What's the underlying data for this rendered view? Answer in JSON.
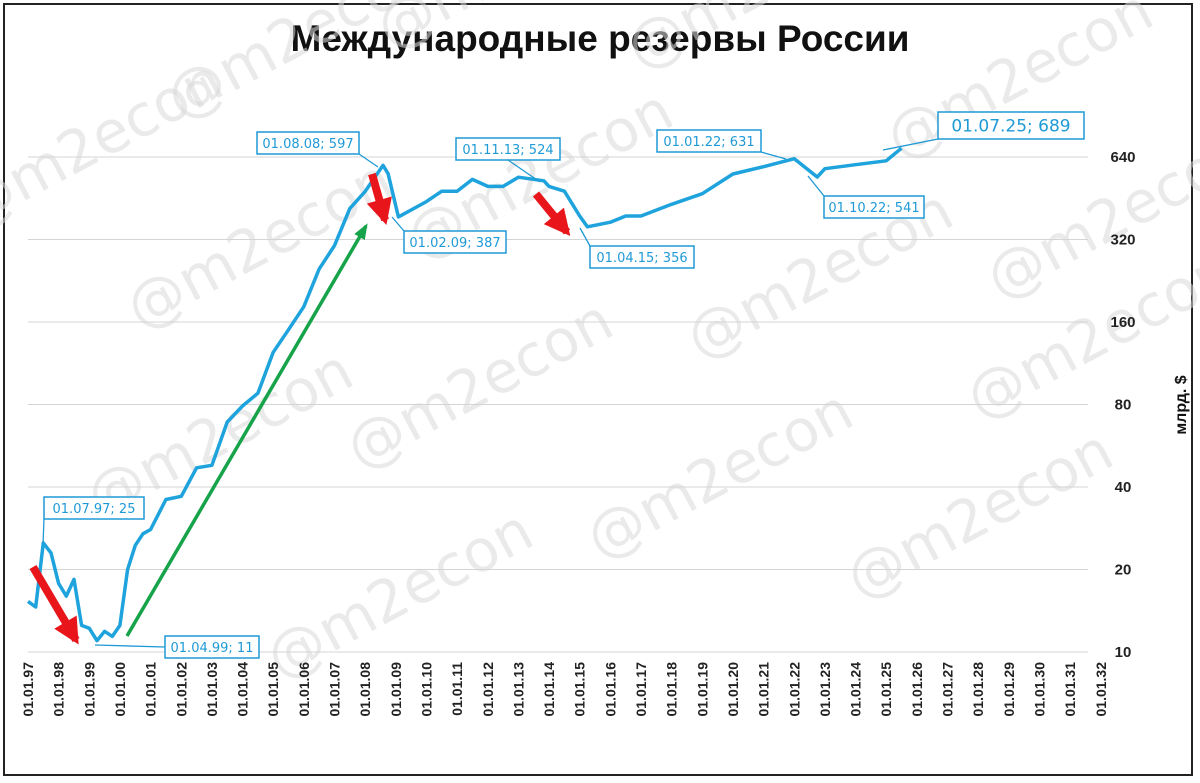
{
  "title": "Международные резервы России",
  "watermark": "@m2econ",
  "colors": {
    "line": "#1ea3dd",
    "annotation": "#1f9ad6",
    "down_arrow": "#e8161b",
    "up_arrow": "#16a34a",
    "grid": "#d4d4d4"
  },
  "chart_data": {
    "type": "line",
    "title": "Международные резервы России",
    "ylabel": "млрд. $",
    "y_scale": "log2",
    "ylim": [
      10,
      1280
    ],
    "y_ticks": [
      10,
      20,
      40,
      80,
      160,
      320,
      640
    ],
    "y_tick_labels": [
      "10",
      "20",
      "40",
      "80",
      "160",
      "320",
      "640"
    ],
    "x_ticks": [
      "01.01.97",
      "01.01.98",
      "01.01.99",
      "01.01.00",
      "01.01.01",
      "01.01.02",
      "01.01.03",
      "01.01.04",
      "01.01.05",
      "01.01.06",
      "01.01.07",
      "01.01.08",
      "01.01.09",
      "01.01.10",
      "01.01.11",
      "01.01.12",
      "01.01.13",
      "01.01.14",
      "01.01.15",
      "01.01.16",
      "01.01.17",
      "01.01.18",
      "01.01.19",
      "01.01.20",
      "01.01.21",
      "01.01.22",
      "01.01.23",
      "01.01.24",
      "01.01.25",
      "01.01.26",
      "01.01.27",
      "01.01.28",
      "01.01.29",
      "01.01.30",
      "01.01.31",
      "01.01.32"
    ],
    "grid": "horizontal",
    "series": [
      {
        "x": [
          "01.01.97",
          "01.04.97",
          "01.07.97",
          "01.10.97",
          "01.01.98",
          "01.04.98",
          "01.07.98",
          "01.10.98",
          "01.01.99",
          "01.04.99",
          "01.07.99",
          "01.10.99",
          "01.01.00",
          "01.04.00",
          "01.07.00",
          "01.10.00",
          "01.01.01",
          "01.07.01",
          "01.01.02",
          "01.07.02",
          "01.01.03",
          "01.07.03",
          "01.01.04",
          "01.07.04",
          "01.01.05",
          "01.07.05",
          "01.01.06",
          "01.07.06",
          "01.01.07",
          "01.07.07",
          "01.01.08",
          "01.08.08",
          "01.10.08",
          "01.02.09",
          "01.07.09",
          "01.01.10",
          "01.07.10",
          "01.01.11",
          "01.07.11",
          "01.01.12",
          "01.07.12",
          "01.01.13",
          "01.11.13",
          "01.01.14",
          "01.07.14",
          "01.01.15",
          "01.04.15",
          "01.01.16",
          "01.07.16",
          "01.01.17",
          "01.01.18",
          "01.01.19",
          "01.01.20",
          "01.01.21",
          "01.01.22",
          "01.10.22",
          "01.01.23",
          "01.01.24",
          "01.01.25",
          "01.07.25"
        ],
        "values": [
          15.3,
          14.6,
          25,
          23,
          17.8,
          16,
          18.4,
          12.5,
          12.2,
          11,
          11.9,
          11.4,
          12.5,
          20,
          24.5,
          27,
          28,
          36,
          37,
          47,
          48,
          69,
          79,
          88,
          124,
          150,
          182,
          250,
          304,
          415,
          479,
          597,
          556,
          387,
          410,
          440,
          480,
          480,
          530,
          500,
          500,
          540,
          524,
          500,
          480,
          390,
          356,
          370,
          390,
          390,
          430,
          470,
          555,
          590,
          631,
          541,
          580,
          600,
          620,
          689
        ]
      }
    ],
    "annotations": [
      {
        "label": "01.07.97; 25",
        "x": "01.07.97",
        "y": 25
      },
      {
        "label": "01.04.99; 11",
        "x": "01.04.99",
        "y": 11
      },
      {
        "label": "01.08.08; 597",
        "x": "01.08.08",
        "y": 597
      },
      {
        "label": "01.02.09; 387",
        "x": "01.02.09",
        "y": 387
      },
      {
        "label": "01.11.13; 524",
        "x": "01.11.13",
        "y": 524
      },
      {
        "label": "01.04.15; 356",
        "x": "01.04.15",
        "y": 356
      },
      {
        "label": "01.01.22; 631",
        "x": "01.01.22",
        "y": 631
      },
      {
        "label": "01.10.22; 541",
        "x": "01.10.22",
        "y": 541
      },
      {
        "label": "01.07.25; 689",
        "x": "01.07.25",
        "y": 689
      }
    ]
  }
}
